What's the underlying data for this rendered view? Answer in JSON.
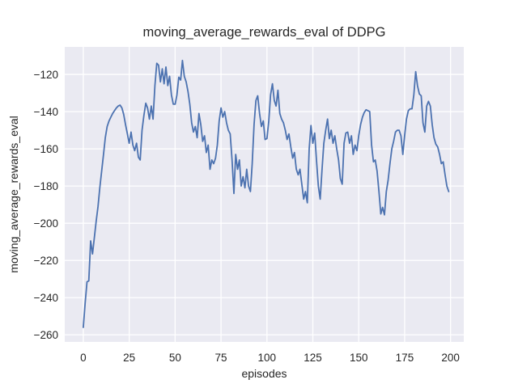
{
  "figure": {
    "title": "moving_average_rewards_eval of DDPG",
    "xlabel": "episodes",
    "ylabel": "moving_average_rewards_eval",
    "background_color": "#ffffff",
    "plot_background_color": "#eaeaf2",
    "grid_color": "#ffffff",
    "text_color": "#262626",
    "line_color": "#4c72b0"
  },
  "chart_data": {
    "type": "line",
    "title": "moving_average_rewards_eval of DDPG",
    "xlabel": "episodes",
    "ylabel": "moving_average_rewards_eval",
    "grid": true,
    "legend": "none",
    "xlim": [
      -10.1,
      207.2
    ],
    "ylim": [
      -263.8,
      -105.2
    ],
    "xticks": [
      0,
      25,
      50,
      75,
      100,
      125,
      150,
      175,
      200
    ],
    "xtick_labels": [
      "0",
      "25",
      "50",
      "75",
      "100",
      "125",
      "150",
      "175",
      "200"
    ],
    "yticks": [
      -120,
      -140,
      -160,
      -180,
      -200,
      -220,
      -240,
      -260
    ],
    "ytick_labels": [
      "−120",
      "−140",
      "−160",
      "−180",
      "−200",
      "−220",
      "−240",
      "−260"
    ],
    "series": [
      {
        "name": "moving_average_rewards_eval",
        "x_start": 0,
        "x_step": 1,
        "values": [
          -256,
          -243,
          -231.5,
          -231,
          -209.5,
          -216.5,
          -208,
          -199,
          -191,
          -181,
          -172,
          -163,
          -154,
          -148,
          -145,
          -143,
          -141,
          -139.5,
          -138,
          -137,
          -136.5,
          -138,
          -141.5,
          -147,
          -152,
          -157,
          -151,
          -158,
          -161,
          -157,
          -164.5,
          -166,
          -150,
          -142,
          -135.5,
          -138,
          -144,
          -137,
          -144,
          -126,
          -114,
          -115,
          -124,
          -117,
          -125,
          -116,
          -126,
          -121,
          -131,
          -136,
          -136,
          -131,
          -121.5,
          -123,
          -112.5,
          -121,
          -124,
          -129,
          -136,
          -146,
          -151,
          -148,
          -154,
          -141,
          -147,
          -156,
          -153,
          -162,
          -158,
          -171,
          -166,
          -168,
          -165,
          -158,
          -145,
          -138,
          -143,
          -140,
          -146,
          -150,
          -152,
          -166,
          -184,
          -163,
          -171,
          -166,
          -180,
          -175,
          -181,
          -171,
          -180,
          -183,
          -168,
          -147,
          -134,
          -131.5,
          -141,
          -148,
          -145,
          -155,
          -154.5,
          -145,
          -131,
          -125,
          -134,
          -137,
          -128.5,
          -141,
          -144,
          -146,
          -150,
          -155,
          -152,
          -159,
          -165,
          -162,
          -171,
          -174,
          -171,
          -179,
          -187,
          -183,
          -189,
          -160,
          -147.5,
          -157,
          -151.5,
          -166,
          -180,
          -187,
          -171,
          -157,
          -150,
          -144,
          -154.5,
          -150,
          -157,
          -153,
          -160,
          -166,
          -176,
          -179,
          -157,
          -151.5,
          -151,
          -157,
          -153,
          -163,
          -158,
          -161,
          -153,
          -147,
          -143,
          -140.5,
          -139,
          -139.5,
          -140,
          -158,
          -167,
          -166,
          -172,
          -183,
          -195,
          -191.5,
          -195.5,
          -183,
          -177,
          -168,
          -160,
          -156,
          -151,
          -150,
          -150,
          -153,
          -163,
          -153,
          -144,
          -139.5,
          -138.5,
          -138.5,
          -131,
          -118.5,
          -126,
          -130.5,
          -131.5,
          -146,
          -151,
          -137,
          -134.5,
          -137,
          -147,
          -154,
          -157.5,
          -159,
          -163,
          -168,
          -167,
          -174,
          -180,
          -183
        ]
      }
    ]
  }
}
